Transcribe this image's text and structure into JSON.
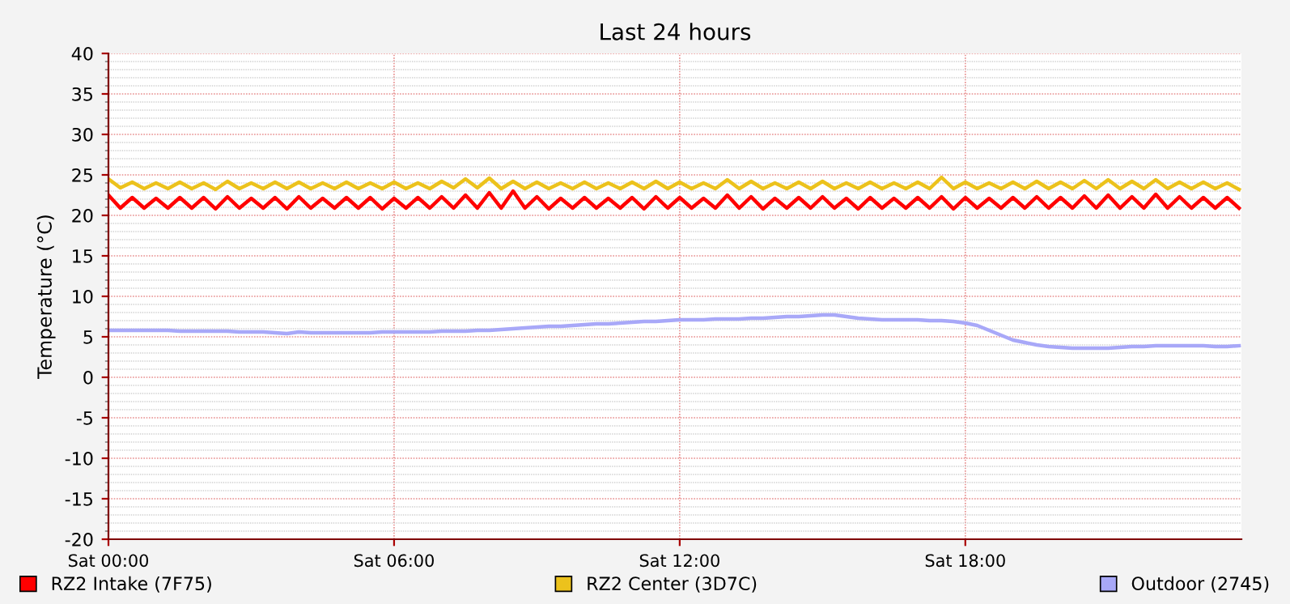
{
  "chart_data": {
    "type": "line",
    "title": "Last 24 hours",
    "ylabel": "Temperature (°C)",
    "categories": [
      "Sat 00:00",
      null,
      null,
      null,
      null,
      null,
      null,
      null,
      null,
      null,
      null,
      null,
      null,
      null,
      null,
      null,
      null,
      null,
      null,
      null,
      null,
      null,
      null,
      null,
      "Sat 06:00",
      null,
      null,
      null,
      null,
      null,
      null,
      null,
      null,
      null,
      null,
      null,
      null,
      null,
      null,
      null,
      null,
      null,
      null,
      null,
      null,
      null,
      null,
      null,
      "Sat 12:00",
      null,
      null,
      null,
      null,
      null,
      null,
      null,
      null,
      null,
      null,
      null,
      null,
      null,
      null,
      null,
      null,
      null,
      null,
      null,
      null,
      null,
      null,
      null,
      "Sat 18:00",
      null,
      null,
      null,
      null,
      null,
      null,
      null,
      null,
      null,
      null,
      null,
      null,
      null,
      null,
      null,
      null,
      null,
      null,
      null,
      null,
      null,
      null,
      null
    ],
    "series": [
      {
        "name": "RZ2 Intake (7F75)",
        "color": "#ff0000",
        "values": [
          22.5,
          20.9,
          22.2,
          20.9,
          22.1,
          20.9,
          22.2,
          20.9,
          22.2,
          20.8,
          22.3,
          20.9,
          22.1,
          20.9,
          22.2,
          20.8,
          22.3,
          20.9,
          22.1,
          20.9,
          22.2,
          20.9,
          22.2,
          20.8,
          22.1,
          20.9,
          22.2,
          20.9,
          22.3,
          20.9,
          22.5,
          20.9,
          22.8,
          20.9,
          23.0,
          20.9,
          22.3,
          20.8,
          22.1,
          20.9,
          22.2,
          20.9,
          22.1,
          20.9,
          22.2,
          20.8,
          22.3,
          20.9,
          22.2,
          20.9,
          22.1,
          20.9,
          22.5,
          20.9,
          22.3,
          20.8,
          22.1,
          20.9,
          22.2,
          20.9,
          22.3,
          20.9,
          22.1,
          20.8,
          22.2,
          20.9,
          22.1,
          20.9,
          22.2,
          20.9,
          22.3,
          20.8,
          22.2,
          20.9,
          22.1,
          20.9,
          22.2,
          20.9,
          22.3,
          20.9,
          22.2,
          20.9,
          22.4,
          20.9,
          22.5,
          20.9,
          22.3,
          20.9,
          22.6,
          20.9,
          22.3,
          20.9,
          22.2,
          20.9,
          22.2,
          20.9
        ]
      },
      {
        "name": "RZ2 Center (3D7C)",
        "color": "#ecc21c",
        "values": [
          24.5,
          23.4,
          24.1,
          23.3,
          24.0,
          23.3,
          24.1,
          23.3,
          24.0,
          23.2,
          24.2,
          23.3,
          24.0,
          23.3,
          24.1,
          23.3,
          24.1,
          23.3,
          24.0,
          23.3,
          24.1,
          23.3,
          24.0,
          23.3,
          24.1,
          23.3,
          24.0,
          23.3,
          24.2,
          23.4,
          24.5,
          23.4,
          24.6,
          23.3,
          24.2,
          23.3,
          24.1,
          23.3,
          24.0,
          23.3,
          24.1,
          23.3,
          24.0,
          23.3,
          24.1,
          23.3,
          24.2,
          23.3,
          24.1,
          23.3,
          24.0,
          23.3,
          24.4,
          23.3,
          24.2,
          23.3,
          24.0,
          23.3,
          24.1,
          23.3,
          24.2,
          23.3,
          24.0,
          23.3,
          24.1,
          23.3,
          24.0,
          23.3,
          24.1,
          23.3,
          24.7,
          23.3,
          24.1,
          23.3,
          24.0,
          23.3,
          24.1,
          23.3,
          24.2,
          23.3,
          24.1,
          23.3,
          24.3,
          23.3,
          24.4,
          23.3,
          24.2,
          23.3,
          24.4,
          23.3,
          24.1,
          23.3,
          24.1,
          23.3,
          24.0,
          23.2
        ]
      },
      {
        "name": "Outdoor (2745)",
        "color": "#a8a8f8",
        "values": [
          5.8,
          5.8,
          5.8,
          5.8,
          5.8,
          5.8,
          5.7,
          5.7,
          5.7,
          5.7,
          5.7,
          5.6,
          5.6,
          5.6,
          5.5,
          5.4,
          5.6,
          5.5,
          5.5,
          5.5,
          5.5,
          5.5,
          5.5,
          5.6,
          5.6,
          5.6,
          5.6,
          5.6,
          5.7,
          5.7,
          5.7,
          5.8,
          5.8,
          5.9,
          6.0,
          6.1,
          6.2,
          6.3,
          6.3,
          6.4,
          6.5,
          6.6,
          6.6,
          6.7,
          6.8,
          6.9,
          6.9,
          7.0,
          7.1,
          7.1,
          7.1,
          7.2,
          7.2,
          7.2,
          7.3,
          7.3,
          7.4,
          7.5,
          7.5,
          7.6,
          7.7,
          7.7,
          7.5,
          7.3,
          7.2,
          7.1,
          7.1,
          7.1,
          7.1,
          7.0,
          7.0,
          6.9,
          6.7,
          6.4,
          5.8,
          5.2,
          4.6,
          4.3,
          4.0,
          3.8,
          3.7,
          3.6,
          3.6,
          3.6,
          3.6,
          3.7,
          3.8,
          3.8,
          3.9,
          3.9,
          3.9,
          3.9,
          3.9,
          3.8,
          3.8,
          3.9
        ]
      }
    ],
    "ylim": [
      -20,
      40
    ],
    "yticks": [
      -20,
      -15,
      -10,
      -5,
      0,
      5,
      10,
      15,
      20,
      25,
      30,
      35,
      40
    ],
    "grid": true,
    "legend": "bottom"
  }
}
